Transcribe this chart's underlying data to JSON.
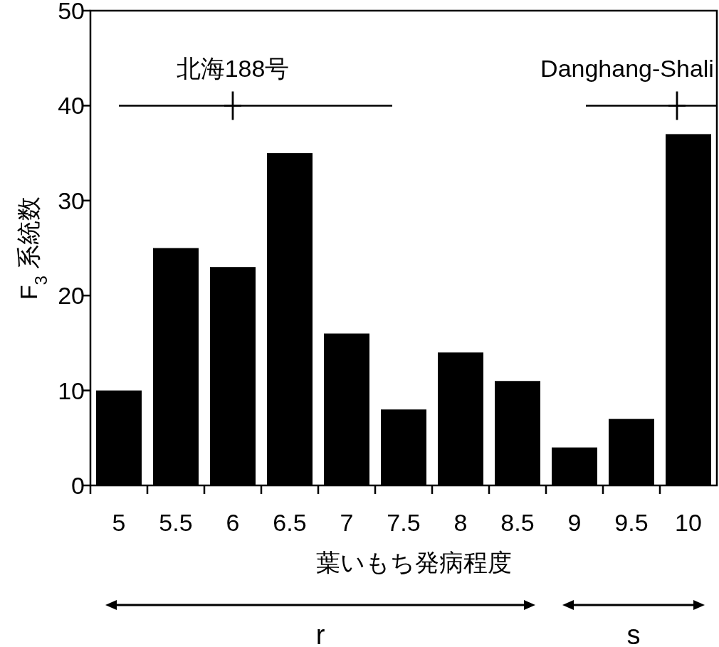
{
  "chart_data": {
    "type": "histogram",
    "xlabel": "葉いもち発病程度",
    "ylabel": "F$_{3}$ 系統数",
    "bins": [
      4.75,
      5.25,
      5.75,
      6.25,
      6.75,
      7.25,
      7.75,
      8.25,
      8.75,
      9.25,
      9.75,
      10.25
    ],
    "values": [
      10,
      25,
      23,
      35,
      16,
      8,
      14,
      11,
      4,
      7,
      37
    ],
    "color": "#000000",
    "xlim": [
      4.75,
      10.25
    ],
    "xticks": [
      {
        "value": 4.75,
        "label": null
      },
      {
        "value": 5.25,
        "label": null
      },
      {
        "value": 5.75,
        "label": null
      },
      {
        "value": 6.25,
        "label": null
      },
      {
        "value": 6.75,
        "label": null
      },
      {
        "value": 7.25,
        "label": null
      },
      {
        "value": 7.75,
        "label": null
      },
      {
        "value": 8.25,
        "label": null
      },
      {
        "value": 8.75,
        "label": null
      },
      {
        "value": 9.25,
        "label": null
      },
      {
        "value": 9.75,
        "label": null
      },
      {
        "value": 5,
        "label": "5"
      },
      {
        "value": 5.5,
        "label": "5.5"
      },
      {
        "value": 6,
        "label": "6"
      },
      {
        "value": 6.5,
        "label": "6.5"
      },
      {
        "value": 7,
        "label": "7"
      },
      {
        "value": 7.5,
        "label": "7.5"
      },
      {
        "value": 8,
        "label": "8"
      },
      {
        "value": 8.5,
        "label": "8.5"
      },
      {
        "value": 9,
        "label": "9"
      },
      {
        "value": 9.5,
        "label": "9.5"
      },
      {
        "value": 10,
        "label": "10"
      }
    ],
    "ylim": [
      0,
      50
    ],
    "yticks": [
      0,
      10,
      20,
      30,
      40,
      50
    ],
    "series": [
      {
        "name": "北海188号",
        "type": "scatter",
        "color": "#000000",
        "x": [
          6.0
        ],
        "values": [
          40
        ],
        "marker": "cross",
        "xerrors": [
          [
            5.0,
            7.4
          ]
        ]
      },
      {
        "name": "Danghang-Shali",
        "type": "scatter",
        "color": "#000000",
        "x": [
          9.9
        ],
        "values": [
          40
        ],
        "marker": "cross",
        "xerrors": [
          [
            9.1,
            10.25
          ]
        ]
      }
    ],
    "annotations": [
      "r",
      "s"
    ],
    "grid": false
  }
}
